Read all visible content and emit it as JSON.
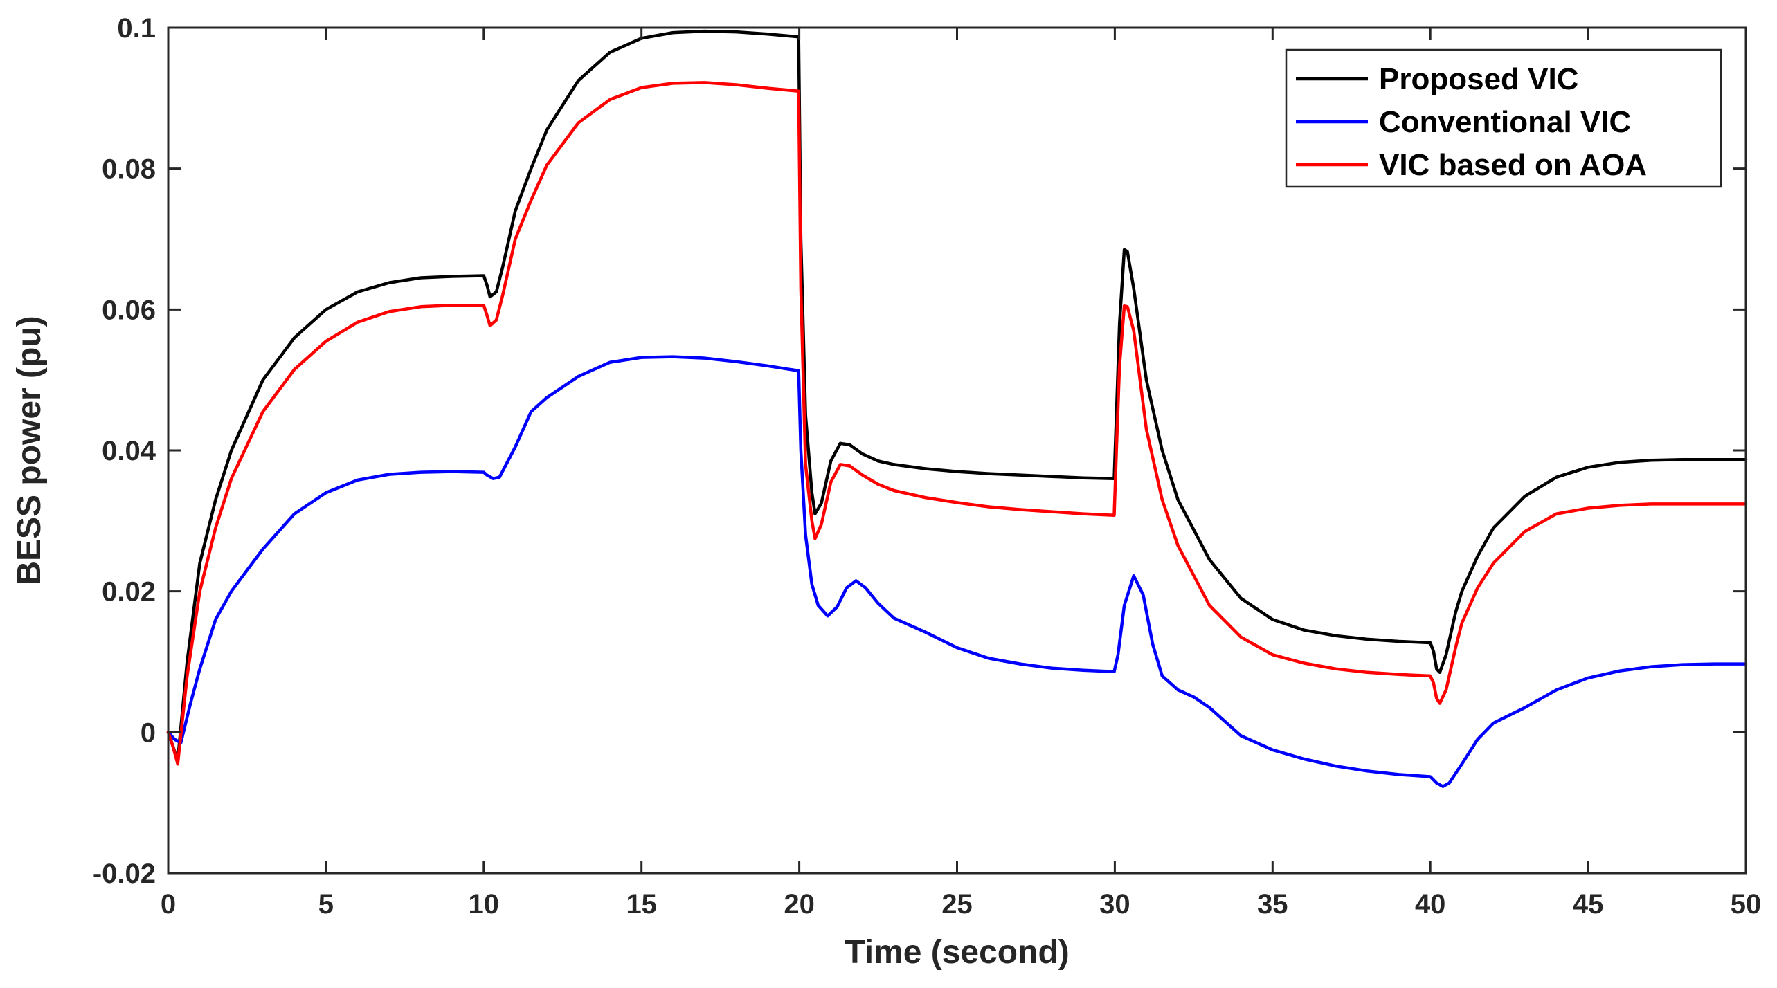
{
  "chart_data": {
    "type": "line",
    "title": "",
    "xlabel": "Time (second)",
    "ylabel": "BESS power (pu)",
    "xlim": [
      0,
      50
    ],
    "ylim": [
      -0.02,
      0.1
    ],
    "xticks": [
      0,
      5,
      10,
      15,
      20,
      25,
      30,
      35,
      40,
      45,
      50
    ],
    "yticks": [
      -0.02,
      0,
      0.02,
      0.04,
      0.06,
      0.08,
      0.1
    ],
    "xtick_labels": [
      "0",
      "5",
      "10",
      "15",
      "20",
      "25",
      "30",
      "35",
      "40",
      "45",
      "50"
    ],
    "ytick_labels": [
      "-0.02",
      "0",
      "0.02",
      "0.04",
      "0.06",
      "0.08",
      "0.1"
    ],
    "grid": false,
    "legend_position": "top-right",
    "series": [
      {
        "name": "Proposed VIC",
        "color": "#000000",
        "x": [
          0,
          0.15,
          0.3,
          0.6,
          1,
          1.5,
          2,
          3,
          4,
          5,
          6,
          7,
          8,
          9,
          10,
          10.1,
          10.2,
          10.4,
          10.6,
          11,
          11.5,
          12,
          13,
          14,
          15,
          16,
          17,
          18,
          19,
          19.98,
          20.05,
          20.2,
          20.4,
          20.5,
          20.7,
          21,
          21.3,
          21.6,
          22,
          22.5,
          23,
          24,
          25,
          26,
          27,
          28,
          29,
          29.98,
          30.05,
          30.15,
          30.3,
          30.4,
          30.6,
          31,
          31.5,
          32,
          33,
          34,
          35,
          36,
          37,
          38,
          39,
          40,
          40.1,
          40.2,
          40.3,
          40.5,
          40.8,
          41,
          41.5,
          42,
          43,
          44,
          45,
          46,
          47,
          48,
          49,
          50
        ],
        "values": [
          0,
          -0.002,
          -0.004,
          0.01,
          0.024,
          0.033,
          0.04,
          0.05,
          0.056,
          0.06,
          0.0625,
          0.0638,
          0.0645,
          0.0647,
          0.0648,
          0.0635,
          0.0618,
          0.0625,
          0.066,
          0.074,
          0.08,
          0.0855,
          0.0925,
          0.0965,
          0.0985,
          0.0993,
          0.0995,
          0.0994,
          0.0991,
          0.0987,
          0.07,
          0.045,
          0.034,
          0.031,
          0.0325,
          0.0385,
          0.041,
          0.0408,
          0.0395,
          0.0385,
          0.038,
          0.0374,
          0.037,
          0.0367,
          0.0365,
          0.0363,
          0.0361,
          0.036,
          0.045,
          0.058,
          0.0685,
          0.0682,
          0.063,
          0.05,
          0.04,
          0.033,
          0.0245,
          0.019,
          0.016,
          0.0145,
          0.0137,
          0.0132,
          0.0129,
          0.0127,
          0.0115,
          0.009,
          0.0085,
          0.011,
          0.017,
          0.02,
          0.025,
          0.029,
          0.0335,
          0.0362,
          0.0376,
          0.0383,
          0.0386,
          0.0387,
          0.0387,
          0.0387
        ]
      },
      {
        "name": "Conventional VIC",
        "color": "#0000ff",
        "x": [
          0,
          0.2,
          0.4,
          0.7,
          1,
          1.5,
          2,
          2.5,
          3,
          4,
          5,
          6,
          7,
          8,
          9,
          10,
          10.1,
          10.3,
          10.5,
          11,
          11.5,
          12,
          13,
          14,
          15,
          16,
          17,
          18,
          19,
          19.98,
          20.05,
          20.2,
          20.4,
          20.6,
          20.9,
          21.2,
          21.5,
          21.8,
          22.1,
          22.5,
          23,
          24,
          25,
          26,
          27,
          28,
          29,
          29.98,
          30.1,
          30.3,
          30.6,
          30.9,
          31.2,
          31.5,
          32,
          32.5,
          33,
          33.5,
          34,
          35,
          36,
          37,
          38,
          39,
          40,
          40.2,
          40.4,
          40.6,
          41,
          41.5,
          42,
          43,
          44,
          45,
          46,
          47,
          48,
          49,
          50
        ],
        "values": [
          0,
          -0.001,
          -0.0015,
          0.004,
          0.009,
          0.016,
          0.02,
          0.023,
          0.026,
          0.031,
          0.034,
          0.0358,
          0.0366,
          0.0369,
          0.037,
          0.0369,
          0.0365,
          0.036,
          0.0362,
          0.0405,
          0.0455,
          0.0475,
          0.0505,
          0.0525,
          0.0532,
          0.0533,
          0.0531,
          0.0526,
          0.052,
          0.0513,
          0.04,
          0.028,
          0.021,
          0.018,
          0.0165,
          0.0178,
          0.0205,
          0.0215,
          0.0205,
          0.0183,
          0.0162,
          0.0142,
          0.012,
          0.0105,
          0.0097,
          0.0091,
          0.0088,
          0.0086,
          0.011,
          0.018,
          0.0222,
          0.0195,
          0.0125,
          0.008,
          0.006,
          0.005,
          0.0035,
          0.0015,
          -0.0005,
          -0.0025,
          -0.0038,
          -0.0048,
          -0.0055,
          -0.006,
          -0.0063,
          -0.0072,
          -0.0077,
          -0.0072,
          -0.0045,
          -0.001,
          0.0013,
          0.0035,
          0.006,
          0.0077,
          0.0087,
          0.0093,
          0.0096,
          0.0097,
          0.0097
        ]
      },
      {
        "name": "VIC based on AOA",
        "color": "#ff0000",
        "x": [
          0,
          0.15,
          0.3,
          0.6,
          1,
          1.5,
          2,
          3,
          4,
          5,
          6,
          7,
          8,
          9,
          10,
          10.1,
          10.2,
          10.4,
          10.6,
          11,
          11.5,
          12,
          13,
          14,
          15,
          16,
          17,
          18,
          19,
          19.98,
          20.05,
          20.2,
          20.4,
          20.5,
          20.7,
          21,
          21.3,
          21.6,
          22,
          22.5,
          23,
          24,
          25,
          26,
          27,
          28,
          29,
          29.98,
          30.05,
          30.15,
          30.3,
          30.4,
          30.6,
          31,
          31.5,
          32,
          33,
          34,
          35,
          36,
          37,
          38,
          39,
          40,
          40.1,
          40.2,
          40.3,
          40.5,
          40.8,
          41,
          41.5,
          42,
          43,
          44,
          45,
          46,
          47,
          48,
          49,
          50
        ],
        "values": [
          0,
          -0.002,
          -0.0045,
          0.008,
          0.02,
          0.029,
          0.036,
          0.0455,
          0.0515,
          0.0555,
          0.0582,
          0.0597,
          0.0604,
          0.0606,
          0.0606,
          0.0592,
          0.0577,
          0.0585,
          0.062,
          0.07,
          0.0755,
          0.0805,
          0.0865,
          0.0898,
          0.0915,
          0.0921,
          0.0922,
          0.0919,
          0.0914,
          0.091,
          0.063,
          0.038,
          0.03,
          0.0275,
          0.0295,
          0.0355,
          0.038,
          0.0378,
          0.0365,
          0.0352,
          0.0343,
          0.0333,
          0.0326,
          0.032,
          0.0316,
          0.0313,
          0.031,
          0.0308,
          0.04,
          0.052,
          0.0605,
          0.0604,
          0.057,
          0.043,
          0.033,
          0.0265,
          0.018,
          0.0135,
          0.011,
          0.0098,
          0.009,
          0.0085,
          0.0082,
          0.008,
          0.007,
          0.0048,
          0.0041,
          0.006,
          0.012,
          0.0155,
          0.0205,
          0.024,
          0.0285,
          0.031,
          0.0318,
          0.0322,
          0.0324,
          0.0324,
          0.0324,
          0.0324
        ]
      }
    ]
  }
}
